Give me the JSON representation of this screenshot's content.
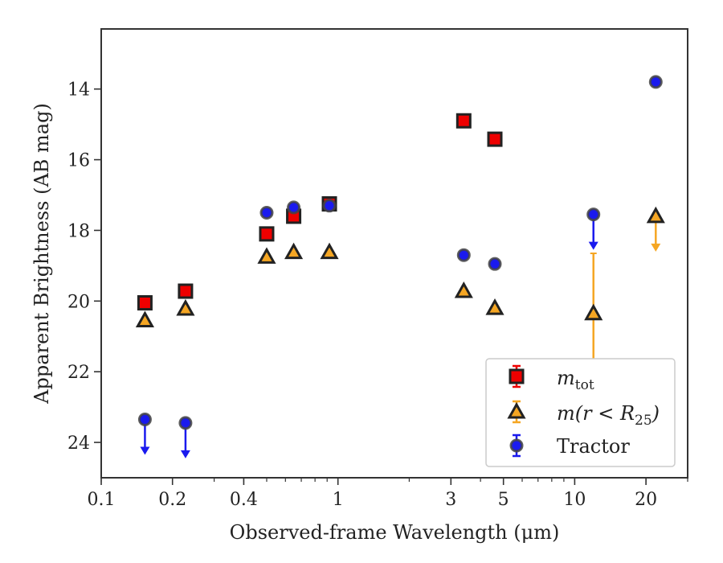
{
  "chart_data": {
    "type": "scatter",
    "xlabel": "Observed-frame Wavelength (μm)",
    "ylabel": "Apparent Brightness (AB mag)",
    "x_scale": "log",
    "y_inverted": true,
    "xlim": [
      0.1,
      30
    ],
    "ylim": [
      25,
      12.3
    ],
    "x_ticks": [
      0.1,
      0.2,
      0.4,
      1,
      3,
      5,
      10,
      20
    ],
    "x_tick_labels": [
      "0.1",
      "0.2",
      "0.4",
      "1",
      "3",
      "5",
      "10",
      "20"
    ],
    "y_ticks": [
      14,
      16,
      18,
      20,
      22,
      24
    ],
    "y_tick_labels": [
      "14",
      "16",
      "18",
      "20",
      "22",
      "24"
    ],
    "grid": false,
    "legend_position": "bottom-right",
    "series": [
      {
        "name": "m_tot",
        "marker": "square",
        "color": "#ee0000",
        "points": [
          {
            "x": 0.153,
            "y": 20.05
          },
          {
            "x": 0.227,
            "y": 19.72
          },
          {
            "x": 0.5,
            "y": 18.1
          },
          {
            "x": 0.65,
            "y": 17.6
          },
          {
            "x": 0.92,
            "y": 17.25
          },
          {
            "x": 3.4,
            "y": 14.9
          },
          {
            "x": 4.6,
            "y": 15.42
          }
        ]
      },
      {
        "name": "m(r < R25)",
        "marker": "triangle",
        "color": "#f5a623",
        "points": [
          {
            "x": 0.153,
            "y": 20.55
          },
          {
            "x": 0.227,
            "y": 20.22
          },
          {
            "x": 0.5,
            "y": 18.75
          },
          {
            "x": 0.65,
            "y": 18.62
          },
          {
            "x": 0.92,
            "y": 18.62
          },
          {
            "x": 3.4,
            "y": 19.72
          },
          {
            "x": 4.6,
            "y": 20.2,
            "err": 0.15
          },
          {
            "x": 12.0,
            "y": 20.35,
            "err_low": 1.7,
            "err_high": 3.0
          },
          {
            "x": 22.0,
            "y": 17.6,
            "upper_limit": true
          }
        ]
      },
      {
        "name": "Tractor",
        "marker": "circle",
        "color": "#1a1aee",
        "points": [
          {
            "x": 0.153,
            "y": 23.35,
            "upper_limit": true
          },
          {
            "x": 0.227,
            "y": 23.45,
            "upper_limit": true
          },
          {
            "x": 0.5,
            "y": 17.5
          },
          {
            "x": 0.65,
            "y": 17.35
          },
          {
            "x": 0.92,
            "y": 17.3
          },
          {
            "x": 3.4,
            "y": 18.7
          },
          {
            "x": 4.6,
            "y": 18.95
          },
          {
            "x": 12.0,
            "y": 17.55,
            "upper_limit": true
          },
          {
            "x": 22.0,
            "y": 13.8
          }
        ]
      }
    ]
  },
  "legend": {
    "m_tot_label": "m",
    "m_tot_sub": "tot",
    "m_r_label_a": "m(r < R",
    "m_r_sub": "25",
    "m_r_label_b": ")",
    "tractor_label": "Tractor"
  }
}
